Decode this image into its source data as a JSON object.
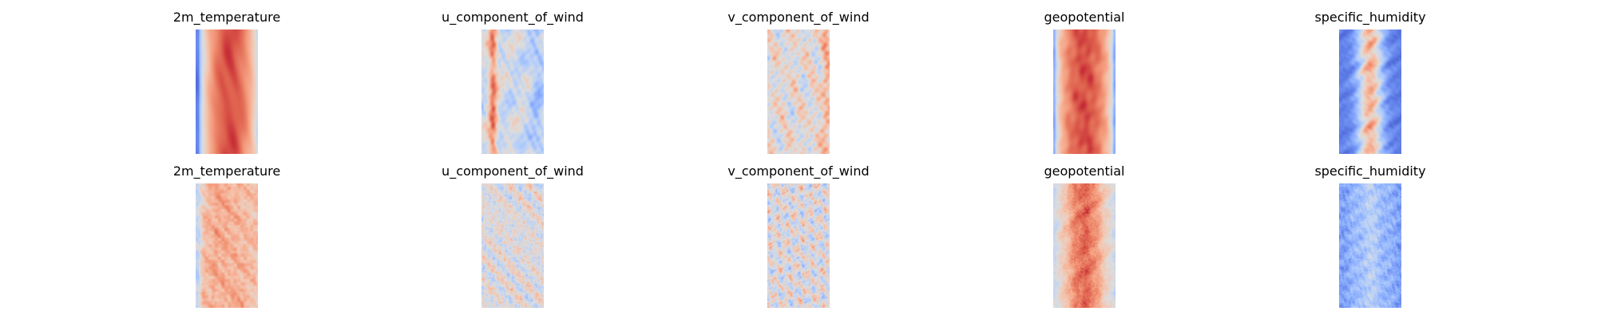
{
  "chart_data": {
    "type": "heatmap",
    "colormap": "coolwarm",
    "axes": "off",
    "grid": false,
    "legend": "none",
    "rows": [
      {
        "panels": [
          {
            "title": "2m_temperature",
            "pattern": "t2m_pred"
          },
          {
            "title": "u_component_of_wind",
            "pattern": "u_pred"
          },
          {
            "title": "v_component_of_wind",
            "pattern": "v_pred"
          },
          {
            "title": "geopotential",
            "pattern": "z_pred"
          },
          {
            "title": "specific_humidity",
            "pattern": "q_pred"
          }
        ]
      },
      {
        "panels": [
          {
            "title": "2m_temperature",
            "pattern": "t2m_noisy"
          },
          {
            "title": "u_component_of_wind",
            "pattern": "u_noisy"
          },
          {
            "title": "v_component_of_wind",
            "pattern": "v_noisy"
          },
          {
            "title": "geopotential",
            "pattern": "z_noisy"
          },
          {
            "title": "specific_humidity",
            "pattern": "q_noisy"
          }
        ]
      }
    ]
  }
}
